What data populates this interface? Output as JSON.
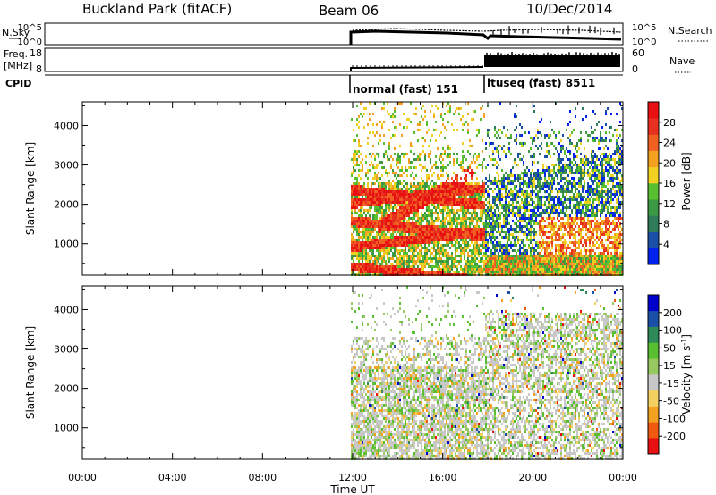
{
  "header": {
    "station": "Buckland Park (fitACF)",
    "beam": "Beam 06",
    "date": "10/Dec/2014"
  },
  "top_panels": {
    "nsky": {
      "label": "N.Sky",
      "ticks": [
        "10^5",
        "10^0"
      ],
      "right_ticks": [
        "10^5",
        "10^0"
      ],
      "right_label": "N.Search"
    },
    "freq": {
      "label_1": "Freq.",
      "label_2": "[MHz]",
      "ticks": [
        "18",
        "8"
      ],
      "right_ticks": [
        "60",
        "0"
      ],
      "right_label": "Nave"
    },
    "cpid": {
      "label": "CPID",
      "modes": [
        "normal (fast) 151",
        "ituseq (fast) 8511"
      ]
    }
  },
  "axes": {
    "ylabel": "Slant Range [km]",
    "xlabel": "Time UT",
    "yticks": [
      "4000",
      "3000",
      "2000",
      "1000"
    ],
    "xticks": [
      "00:00",
      "04:00",
      "08:00",
      "12:00",
      "16:00",
      "20:00",
      "00:00"
    ]
  },
  "colorbars": {
    "power": {
      "label": "Power [dB]",
      "ticks": [
        "28",
        "24",
        "20",
        "16",
        "12",
        "8",
        "4"
      ]
    },
    "velocity": {
      "label_main": "Velocity [m s",
      "label_sup": "-1",
      "label_end": "]",
      "ticks": [
        "200",
        "100",
        "50",
        "15",
        "-15",
        "-50",
        "-100",
        "-200"
      ]
    }
  },
  "chart_data": [
    {
      "type": "heatmap",
      "name": "power",
      "x_unit": "hours UT",
      "xlim": [
        0,
        24
      ],
      "ylim": [
        200,
        4600
      ],
      "data_start_hour": 12,
      "mode_change_hour": 18,
      "colorscale": [
        "#0022ee",
        "#1a4fa8",
        "#2e7d58",
        "#3c9a45",
        "#58c030",
        "#f0d020",
        "#f4a020",
        "#f06020",
        "#e83020",
        "#e81010"
      ],
      "cbar_range": [
        0,
        32
      ]
    },
    {
      "type": "heatmap",
      "name": "velocity",
      "x_unit": "hours UT",
      "xlim": [
        0,
        24
      ],
      "ylim": [
        200,
        4600
      ],
      "colorscale": [
        "#e81010",
        "#f05a10",
        "#f4a020",
        "#f4d060",
        "#c8c8c8",
        "#98c860",
        "#58c030",
        "#2e8a58",
        "#1a4fa8",
        "#0000cc"
      ],
      "cbar_range": [
        -250,
        250
      ]
    }
  ]
}
